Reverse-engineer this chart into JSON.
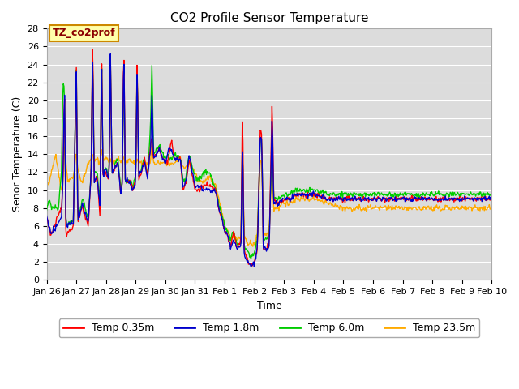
{
  "title": "CO2 Profile Sensor Temperature",
  "ylabel": "Senor Temperature (C)",
  "xlabel": "Time",
  "ylim": [
    0,
    28
  ],
  "annotation_text": "TZ_co2prof",
  "legend_labels": [
    "Temp 0.35m",
    "Temp 1.8m",
    "Temp 6.0m",
    "Temp 23.5m"
  ],
  "line_colors": [
    "#ff0000",
    "#0000cc",
    "#00cc00",
    "#ffaa00"
  ],
  "xticklabels": [
    "Jan 26",
    "Jan 27",
    "Jan 28",
    "Jan 29",
    "Jan 30",
    "Jan 31",
    "Feb 1",
    "Feb 2",
    "Feb 3",
    "Feb 4",
    "Feb 5",
    "Feb 6",
    "Feb 7",
    "Feb 8",
    "Feb 9",
    "Feb 10"
  ],
  "title_fontsize": 11,
  "axis_label_fontsize": 9,
  "tick_fontsize": 8,
  "legend_fontsize": 9,
  "bg_color": "#dcdcdc"
}
